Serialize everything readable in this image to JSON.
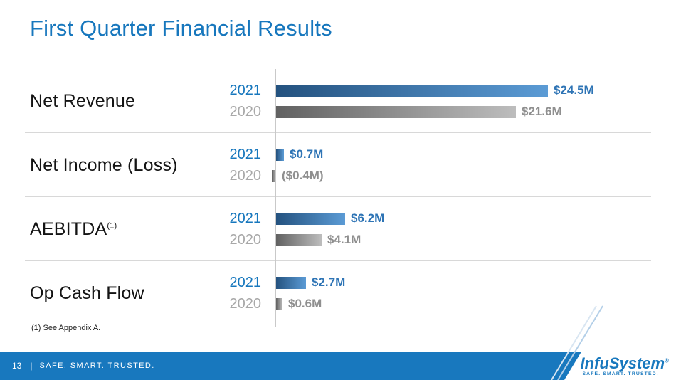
{
  "title": "First Quarter Financial Results",
  "footnote": "(1) See Appendix A.",
  "footer": {
    "page_number": "13",
    "separator": "|",
    "tagline": "SAFE. SMART. TRUSTED."
  },
  "logo": {
    "wordmark": "InfuSystem",
    "registered_mark": "®",
    "tagline": "SAFE. SMART. TRUSTED."
  },
  "colors": {
    "accent_blue": "#1777bd",
    "year_2020_gray": "#a8a8a8",
    "bar_2021_gradient": [
      "#24527f",
      "#5b9bd5"
    ],
    "bar_2020_gradient": [
      "#616161",
      "#bdbdbd"
    ],
    "value_2021_text": "#2e74b5",
    "value_2020_text": "#8f8f8f",
    "footer_bar": "#1878be"
  },
  "chart_data": {
    "type": "bar",
    "orientation": "horizontal",
    "unit": "USD millions",
    "categories": [
      "Net Revenue",
      "Net Income (Loss)",
      "AEBITDA",
      "Op Cash Flow"
    ],
    "series": [
      {
        "name": "2021",
        "values": [
          24.5,
          0.7,
          6.2,
          2.7
        ]
      },
      {
        "name": "2020",
        "values": [
          21.6,
          -0.4,
          4.1,
          0.6
        ]
      }
    ],
    "rows": [
      {
        "metric": "Net Revenue",
        "metric_superscript": "",
        "bars": {
          "y2021": {
            "year": "2021",
            "value": 24.5,
            "display": "$24.5M"
          },
          "y2020": {
            "year": "2020",
            "value": 21.6,
            "display": "$21.6M"
          }
        }
      },
      {
        "metric": "Net Income (Loss)",
        "metric_superscript": "",
        "bars": {
          "y2021": {
            "year": "2021",
            "value": 0.7,
            "display": "$0.7M"
          },
          "y2020": {
            "year": "2020",
            "value": -0.4,
            "display": "($0.4M)"
          }
        }
      },
      {
        "metric": "AEBITDA",
        "metric_superscript": "(1)",
        "bars": {
          "y2021": {
            "year": "2021",
            "value": 6.2,
            "display": "$6.2M"
          },
          "y2020": {
            "year": "2020",
            "value": 4.1,
            "display": "$4.1M"
          }
        }
      },
      {
        "metric": "Op Cash Flow",
        "metric_superscript": "",
        "bars": {
          "y2021": {
            "year": "2021",
            "value": 2.7,
            "display": "$2.7M"
          },
          "y2020": {
            "year": "2020",
            "value": 0.6,
            "display": "$0.6M"
          }
        }
      }
    ]
  }
}
